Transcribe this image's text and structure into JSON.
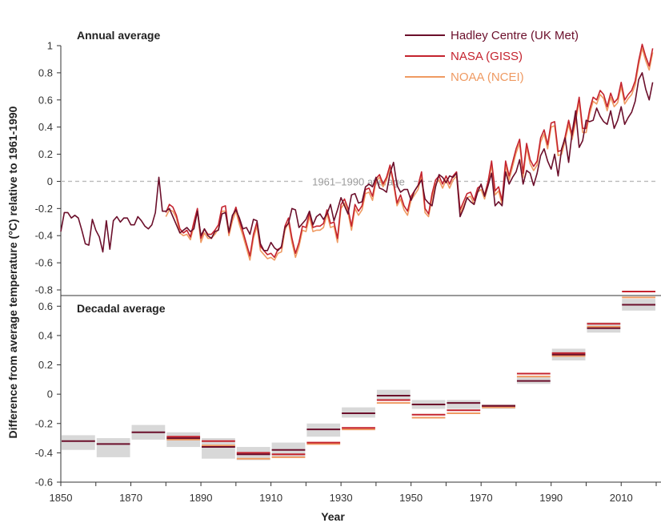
{
  "chart_data": [
    {
      "type": "line",
      "title": "Annual average",
      "ylim": [
        -0.8,
        1.0
      ],
      "yticks": [
        -0.8,
        -0.6,
        -0.4,
        -0.2,
        0,
        0.2,
        0.4,
        0.6,
        0.8,
        1
      ],
      "ytick_labels": [
        "-0.8",
        "-0.6",
        "-0.4",
        "-0.2",
        "0",
        "0.2",
        "0.4",
        "0.6",
        "0.8",
        "1"
      ],
      "xlim": [
        1850,
        2020
      ],
      "reference_line": {
        "value": 0,
        "label": "1961–1990 average",
        "style": "dashed"
      },
      "legend_position": "top-right",
      "series": [
        {
          "name": "Hadley Centre (UK Met)",
          "color": "#6b0f2b",
          "x_start": 1850,
          "values": [
            -0.37,
            -0.23,
            -0.23,
            -0.27,
            -0.25,
            -0.27,
            -0.36,
            -0.46,
            -0.47,
            -0.28,
            -0.36,
            -0.41,
            -0.52,
            -0.29,
            -0.5,
            -0.29,
            -0.26,
            -0.3,
            -0.27,
            -0.27,
            -0.32,
            -0.32,
            -0.26,
            -0.29,
            -0.33,
            -0.35,
            -0.32,
            -0.23,
            0.03,
            -0.22,
            -0.22,
            -0.2,
            -0.26,
            -0.32,
            -0.38,
            -0.36,
            -0.34,
            -0.37,
            -0.35,
            -0.22,
            -0.4,
            -0.35,
            -0.4,
            -0.42,
            -0.37,
            -0.36,
            -0.24,
            -0.23,
            -0.37,
            -0.25,
            -0.21,
            -0.27,
            -0.35,
            -0.34,
            -0.39,
            -0.28,
            -0.29,
            -0.46,
            -0.51,
            -0.51,
            -0.45,
            -0.49,
            -0.51,
            -0.48,
            -0.34,
            -0.31,
            -0.2,
            -0.21,
            -0.34,
            -0.31,
            -0.28,
            -0.22,
            -0.32,
            -0.26,
            -0.24,
            -0.28,
            -0.24,
            -0.17,
            -0.29,
            -0.21,
            -0.12,
            -0.18,
            -0.24,
            -0.1,
            -0.09,
            -0.16,
            -0.15,
            -0.04,
            -0.02,
            -0.04,
            0.03,
            -0.05,
            -0.06,
            -0.08,
            0.06,
            0.14,
            -0.03,
            -0.08,
            -0.06,
            -0.06,
            -0.14,
            -0.07,
            -0.03,
            0.01,
            -0.13,
            -0.16,
            -0.18,
            -0.04,
            0.05,
            0.03,
            -0.01,
            0.04,
            0.03,
            0.06,
            -0.26,
            -0.2,
            -0.12,
            -0.15,
            -0.17,
            -0.08,
            -0.02,
            -0.11,
            -0.03,
            0.06,
            -0.18,
            -0.15,
            -0.18,
            0.07,
            -0.02,
            0.03,
            0.07,
            0.16,
            -0.02,
            0.08,
            0.06,
            -0.03,
            0.06,
            0.19,
            0.24,
            0.15,
            0.09,
            0.2,
            0.04,
            0.24,
            0.32,
            0.14,
            0.36,
            0.52,
            0.25,
            0.3,
            0.45,
            0.44,
            0.45,
            0.54,
            0.48,
            0.44,
            0.42,
            0.52,
            0.39,
            0.45,
            0.55,
            0.42,
            0.47,
            0.51,
            0.59,
            0.75,
            0.8,
            0.68,
            0.6,
            0.73
          ]
        },
        {
          "name": "NASA (GISS)",
          "color": "#c4232e",
          "x_start": 1880,
          "values": [
            -0.23,
            -0.17,
            -0.19,
            -0.25,
            -0.35,
            -0.38,
            -0.36,
            -0.41,
            -0.3,
            -0.2,
            -0.42,
            -0.35,
            -0.39,
            -0.39,
            -0.36,
            -0.32,
            -0.19,
            -0.18,
            -0.38,
            -0.26,
            -0.19,
            -0.29,
            -0.37,
            -0.46,
            -0.55,
            -0.39,
            -0.3,
            -0.48,
            -0.51,
            -0.54,
            -0.53,
            -0.56,
            -0.5,
            -0.49,
            -0.33,
            -0.27,
            -0.42,
            -0.53,
            -0.45,
            -0.33,
            -0.34,
            -0.23,
            -0.34,
            -0.33,
            -0.33,
            -0.31,
            -0.21,
            -0.31,
            -0.3,
            -0.42,
            -0.17,
            -0.13,
            -0.2,
            -0.33,
            -0.17,
            -0.22,
            -0.18,
            -0.06,
            -0.05,
            -0.11,
            0.02,
            0.05,
            -0.02,
            0.03,
            0.12,
            0.0,
            -0.16,
            -0.1,
            -0.18,
            -0.22,
            -0.11,
            -0.07,
            -0.03,
            0.07,
            -0.2,
            -0.24,
            -0.09,
            0.01,
            0.04,
            -0.02,
            0.04,
            -0.02,
            0.04,
            0.07,
            -0.21,
            -0.15,
            -0.09,
            -0.08,
            -0.14,
            -0.05,
            -0.03,
            -0.1,
            0.0,
            0.15,
            -0.07,
            -0.04,
            -0.14,
            0.15,
            0.04,
            0.14,
            0.24,
            0.31,
            0.06,
            0.28,
            0.16,
            0.11,
            0.15,
            0.32,
            0.38,
            0.27,
            0.43,
            0.44,
            0.22,
            0.23,
            0.33,
            0.45,
            0.34,
            0.47,
            0.62,
            0.39,
            0.39,
            0.53,
            0.62,
            0.6,
            0.67,
            0.64,
            0.55,
            0.65,
            0.58,
            0.61,
            0.73,
            0.6,
            0.64,
            0.67,
            0.74,
            0.89,
            1.01,
            0.92,
            0.85,
            0.98
          ]
        },
        {
          "name": "NOAA (NCEI)",
          "color": "#ef9a62",
          "x_start": 1880,
          "values": [
            -0.26,
            -0.21,
            -0.22,
            -0.27,
            -0.38,
            -0.4,
            -0.39,
            -0.43,
            -0.33,
            -0.22,
            -0.45,
            -0.38,
            -0.42,
            -0.42,
            -0.39,
            -0.35,
            -0.22,
            -0.22,
            -0.4,
            -0.29,
            -0.22,
            -0.32,
            -0.4,
            -0.49,
            -0.58,
            -0.42,
            -0.33,
            -0.51,
            -0.54,
            -0.57,
            -0.56,
            -0.58,
            -0.53,
            -0.52,
            -0.36,
            -0.3,
            -0.45,
            -0.56,
            -0.48,
            -0.36,
            -0.37,
            -0.26,
            -0.37,
            -0.36,
            -0.36,
            -0.34,
            -0.24,
            -0.34,
            -0.33,
            -0.45,
            -0.2,
            -0.16,
            -0.23,
            -0.36,
            -0.2,
            -0.25,
            -0.21,
            -0.09,
            -0.08,
            -0.14,
            0.0,
            0.03,
            -0.04,
            0.01,
            0.1,
            -0.02,
            -0.18,
            -0.13,
            -0.21,
            -0.25,
            -0.14,
            -0.1,
            -0.06,
            0.04,
            -0.23,
            -0.26,
            -0.12,
            -0.02,
            0.01,
            -0.05,
            0.01,
            -0.05,
            0.01,
            0.04,
            -0.24,
            -0.18,
            -0.12,
            -0.11,
            -0.17,
            -0.08,
            -0.06,
            -0.13,
            -0.03,
            0.12,
            -0.1,
            -0.07,
            -0.17,
            0.12,
            0.01,
            0.11,
            0.21,
            0.28,
            0.03,
            0.25,
            0.13,
            0.08,
            0.12,
            0.29,
            0.35,
            0.24,
            0.4,
            0.41,
            0.19,
            0.2,
            0.3,
            0.42,
            0.31,
            0.44,
            0.59,
            0.36,
            0.36,
            0.5,
            0.59,
            0.57,
            0.64,
            0.61,
            0.52,
            0.62,
            0.55,
            0.58,
            0.7,
            0.57,
            0.61,
            0.64,
            0.71,
            0.86,
            0.98,
            0.89,
            0.82,
            0.95
          ]
        }
      ]
    },
    {
      "type": "bar",
      "title": "Decadal average",
      "ylim": [
        -0.6,
        0.7
      ],
      "yticks": [
        -0.6,
        -0.4,
        -0.2,
        0,
        0.2,
        0.4,
        0.6
      ],
      "ytick_labels": [
        "-0.6",
        "-0.4",
        "-0.2",
        "0",
        "0.2",
        "0.4",
        "0.6"
      ],
      "xlim": [
        1850,
        2020
      ],
      "xticks": [
        1850,
        1870,
        1890,
        1910,
        1930,
        1950,
        1970,
        1990,
        2010
      ],
      "xtick_labels": [
        "1850",
        "1870",
        "1890",
        "1910",
        "1930",
        "1950",
        "1970",
        "1990",
        "2010"
      ],
      "xlabel": "Year",
      "uncertainty_color": "#d8d8d8",
      "decades": [
        1850,
        1860,
        1870,
        1880,
        1890,
        1900,
        1910,
        1920,
        1930,
        1940,
        1950,
        1960,
        1970,
        1980,
        1990,
        2000,
        2010
      ],
      "uncertainty": [
        [
          -0.38,
          -0.28
        ],
        [
          -0.43,
          -0.3
        ],
        [
          -0.31,
          -0.21
        ],
        [
          -0.36,
          -0.26
        ],
        [
          -0.44,
          -0.3
        ],
        [
          -0.45,
          -0.36
        ],
        [
          -0.43,
          -0.33
        ],
        [
          -0.29,
          -0.2
        ],
        [
          -0.16,
          -0.09
        ],
        [
          -0.04,
          0.03
        ],
        [
          -0.1,
          -0.04
        ],
        [
          -0.1,
          -0.04
        ],
        [
          -0.1,
          -0.07
        ],
        [
          0.07,
          0.12
        ],
        [
          0.23,
          0.31
        ],
        [
          0.42,
          0.49
        ],
        [
          0.57,
          0.65
        ]
      ],
      "series": [
        {
          "name": "Hadley Centre (UK Met)",
          "color": "#6b0f2b",
          "values": [
            -0.32,
            -0.34,
            -0.26,
            -0.3,
            -0.36,
            -0.41,
            -0.38,
            -0.24,
            -0.13,
            -0.01,
            -0.07,
            -0.06,
            -0.08,
            0.09,
            0.27,
            0.45,
            0.61
          ]
        },
        {
          "name": "NASA (GISS)",
          "color": "#c4232e",
          "values": [
            null,
            null,
            null,
            -0.29,
            -0.32,
            -0.4,
            -0.41,
            -0.33,
            -0.23,
            -0.04,
            -0.14,
            -0.11,
            -0.08,
            0.14,
            0.28,
            0.48,
            0.7
          ]
        },
        {
          "name": "NOAA (NCEI)",
          "color": "#ef9a62",
          "values": [
            null,
            null,
            null,
            -0.31,
            -0.35,
            -0.44,
            -0.43,
            -0.34,
            -0.24,
            -0.06,
            -0.16,
            -0.13,
            -0.09,
            0.12,
            0.26,
            0.46,
            0.66
          ]
        }
      ]
    }
  ],
  "shared_ylabel": "Difference from average temperature (°C) relative to 1961-1990"
}
